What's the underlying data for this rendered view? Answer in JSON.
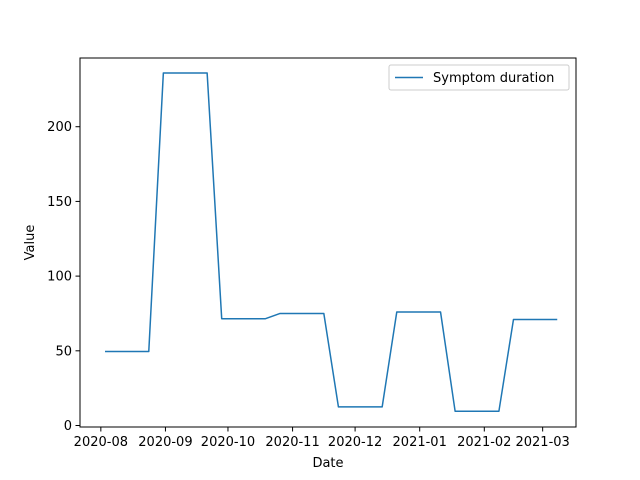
{
  "chart_data": {
    "type": "line",
    "title": "",
    "xlabel": "Date",
    "ylabel": "Value",
    "x_ticks": [
      "2020-08",
      "2020-09",
      "2020-10",
      "2020-11",
      "2020-12",
      "2021-01",
      "2021-02",
      "2021-03"
    ],
    "x_tick_dates": [
      "2020-08-01",
      "2020-09-01",
      "2020-10-01",
      "2020-11-01",
      "2020-12-01",
      "2021-01-01",
      "2021-02-01",
      "2021-03-01"
    ],
    "y_ticks": [
      0,
      50,
      100,
      150,
      200
    ],
    "xlim": [
      "2020-07-22",
      "2021-03-17"
    ],
    "ylim": [
      -1,
      246
    ],
    "grid": false,
    "legend": {
      "position": "upper right",
      "entries": [
        "Symptom duration"
      ]
    },
    "colors": {
      "line": "#1f77b4"
    },
    "series": [
      {
        "name": "Symptom duration",
        "x": [
          "2020-08-03",
          "2020-08-24",
          "2020-08-31",
          "2020-09-21",
          "2020-09-28",
          "2020-10-19",
          "2020-10-26",
          "2020-11-16",
          "2020-11-23",
          "2020-12-14",
          "2020-12-21",
          "2021-01-11",
          "2021-01-18",
          "2021-02-08",
          "2021-02-15",
          "2021-03-08"
        ],
        "y": [
          49.5,
          49.5,
          236,
          236,
          71.5,
          71.5,
          75,
          75,
          12.5,
          12.5,
          76,
          76,
          9.5,
          9.5,
          71,
          71
        ]
      }
    ]
  }
}
